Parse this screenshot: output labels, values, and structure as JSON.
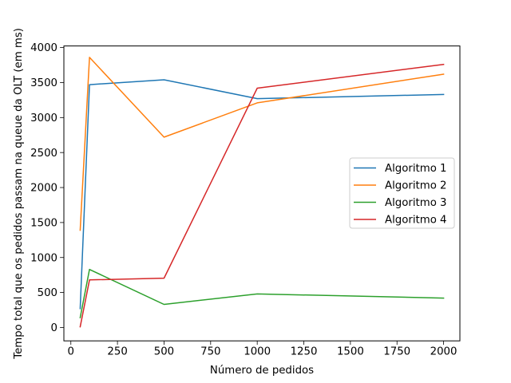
{
  "chart_data": {
    "type": "line",
    "title": "",
    "xlabel": "Número de pedidos",
    "ylabel": "Tempo total que os pedidos passam na queue da OLT (em ms)",
    "xlim": [
      -37.5,
      2087.5
    ],
    "ylim": [
      -191,
      4023
    ],
    "xticks": [
      0,
      250,
      500,
      750,
      1000,
      1250,
      1500,
      1750,
      2000
    ],
    "yticks": [
      0,
      500,
      1000,
      1500,
      2000,
      2500,
      3000,
      3500,
      4000
    ],
    "grid": false,
    "legend_position": "center-right",
    "x": [
      50,
      100,
      500,
      1000,
      2000
    ],
    "series": [
      {
        "name": "Algoritmo 1",
        "color": "#1f77b4",
        "values": [
          270,
          3470,
          3540,
          3270,
          3330
        ]
      },
      {
        "name": "Algoritmo 2",
        "color": "#ff7f0e",
        "values": [
          1390,
          3860,
          2720,
          3210,
          3620
        ]
      },
      {
        "name": "Algoritmo 3",
        "color": "#2ca02c",
        "values": [
          140,
          830,
          330,
          480,
          420
        ]
      },
      {
        "name": "Algoritmo 4",
        "color": "#d62728",
        "values": [
          10,
          680,
          705,
          3420,
          3760
        ]
      }
    ]
  }
}
